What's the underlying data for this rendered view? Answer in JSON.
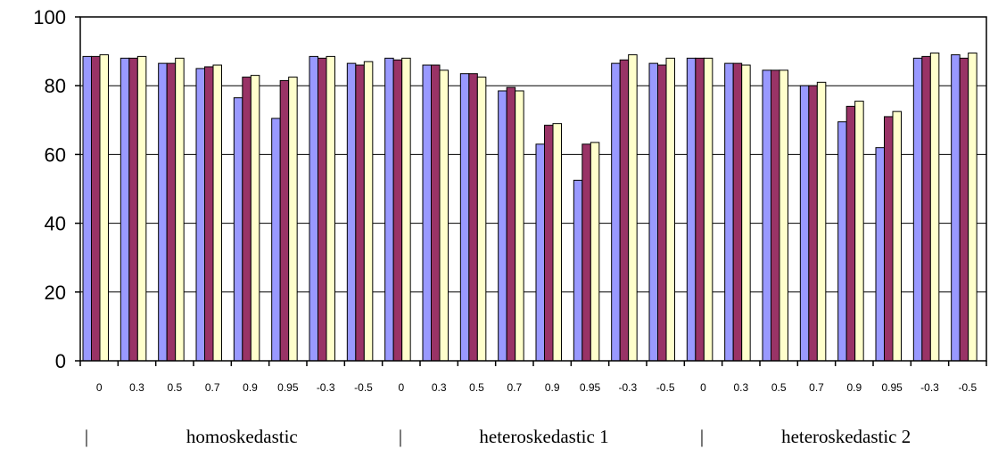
{
  "chart_data": {
    "type": "bar",
    "ylim": [
      0,
      100
    ],
    "yticks": [
      "0",
      "20",
      "40",
      "60",
      "80",
      "100"
    ],
    "grid": "horizontal",
    "categories": [
      "0",
      "0.3",
      "0.5",
      "0.7",
      "0.9",
      "0.95",
      "-0.3",
      "-0.5",
      "0",
      "0.3",
      "0.5",
      "0.7",
      "0.9",
      "0.95",
      "-0.3",
      "-0.5",
      "0",
      "0.3",
      "0.5",
      "0.7",
      "0.9",
      "0.95",
      "-0.3",
      "-0.5"
    ],
    "groups": [
      {
        "label": "homoskedastic",
        "start": 0,
        "end": 7
      },
      {
        "label": "heteroskedastic 1",
        "start": 8,
        "end": 15
      },
      {
        "label": "heteroskedastic 2",
        "start": 16,
        "end": 23
      }
    ],
    "group_separator": "|",
    "series": [
      {
        "color": "#9999FF",
        "values": [
          88.5,
          88,
          86.5,
          85,
          76.5,
          70.5,
          88.5,
          86.5,
          88,
          86,
          83.5,
          78.5,
          63,
          52.5,
          86.5,
          86.5,
          88,
          86.5,
          84.5,
          80,
          69.5,
          62,
          88,
          89
        ]
      },
      {
        "color": "#993366",
        "values": [
          88.5,
          88,
          86.5,
          85.5,
          82.5,
          81.5,
          88,
          86,
          87.5,
          86,
          83.5,
          79.5,
          68.5,
          63,
          87.5,
          86,
          88,
          86.5,
          84.5,
          80,
          74,
          71,
          88.5,
          88
        ]
      },
      {
        "color": "#FFFFCC",
        "values": [
          89,
          88.5,
          88,
          86,
          83,
          82.5,
          88.5,
          87,
          88,
          84.5,
          82.5,
          78.5,
          69,
          63.5,
          89,
          88,
          88,
          86,
          84.5,
          81,
          75.5,
          72.5,
          89.5,
          89.5
        ]
      }
    ]
  }
}
